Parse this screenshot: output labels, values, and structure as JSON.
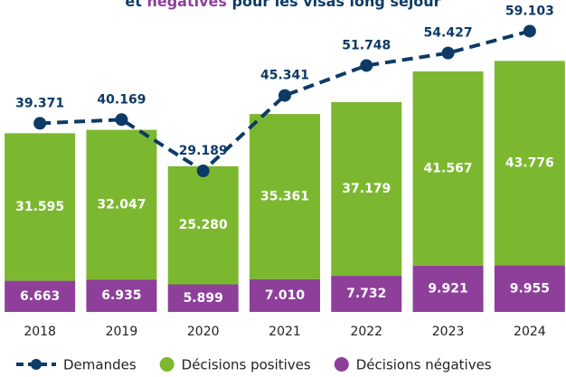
{
  "chart_data": {
    "type": "bar-line",
    "title_parts": [
      "et ",
      "négatives",
      " pour les visas long séjour"
    ],
    "categories": [
      "2018",
      "2019",
      "2020",
      "2021",
      "2022",
      "2023",
      "2024"
    ],
    "series": [
      {
        "name": "Demandes",
        "color": "#0d3b66",
        "type": "line",
        "axis": "y2",
        "values": [
          39371,
          40169,
          29189,
          45341,
          51748,
          54427,
          59103
        ],
        "value_labels": [
          "39.371",
          "40.169",
          "29.189",
          "45.341",
          "51.748",
          "54.427",
          "59.103"
        ]
      },
      {
        "name": "Décisions positives",
        "color": "#7cb82f",
        "type": "bar",
        "values": [
          31595,
          32047,
          25280,
          35361,
          37179,
          41567,
          43776
        ],
        "value_labels": [
          "31.595",
          "32.047",
          "25.280",
          "35.361",
          "37.179",
          "41.567",
          "43.776"
        ]
      },
      {
        "name": "Décisions négatives",
        "color": "#8e3f9a",
        "type": "bar",
        "values": [
          6663,
          6935,
          5899,
          7010,
          7732,
          9921,
          9955
        ],
        "value_labels": [
          "6.663",
          "6.935",
          "5.899",
          "7.010",
          "7.732",
          "9.921",
          "9.955"
        ]
      }
    ],
    "stack_order": [
      2,
      1
    ],
    "ylim": [
      0,
      66000
    ],
    "y2lim": [
      -1000,
      65000
    ]
  }
}
